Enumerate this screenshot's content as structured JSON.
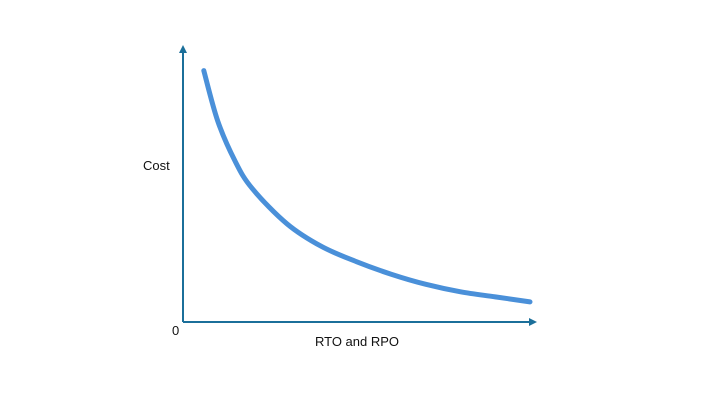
{
  "chart_data": {
    "type": "line",
    "title": "",
    "xlabel": "RTO and RPO",
    "ylabel": "Cost",
    "origin_label": "0",
    "grid": false,
    "legend": "none",
    "x_ticks_shown": false,
    "y_ticks_shown": false,
    "series": [
      {
        "color": "#4A90D9",
        "x": [
          0.06,
          0.1,
          0.15,
          0.2,
          0.3,
          0.4,
          0.5,
          0.6,
          0.7,
          0.8,
          0.9,
          1.0
        ],
        "y": [
          1.0,
          0.8,
          0.64,
          0.53,
          0.39,
          0.3,
          0.24,
          0.19,
          0.15,
          0.12,
          0.1,
          0.08
        ]
      }
    ],
    "xlim": [
      0,
      1
    ],
    "ylim": [
      0,
      1.05
    ]
  },
  "colors": {
    "axis": "#1b6f9a",
    "curve": "#4A90D9",
    "text": "#111111",
    "background": "#ffffff"
  }
}
